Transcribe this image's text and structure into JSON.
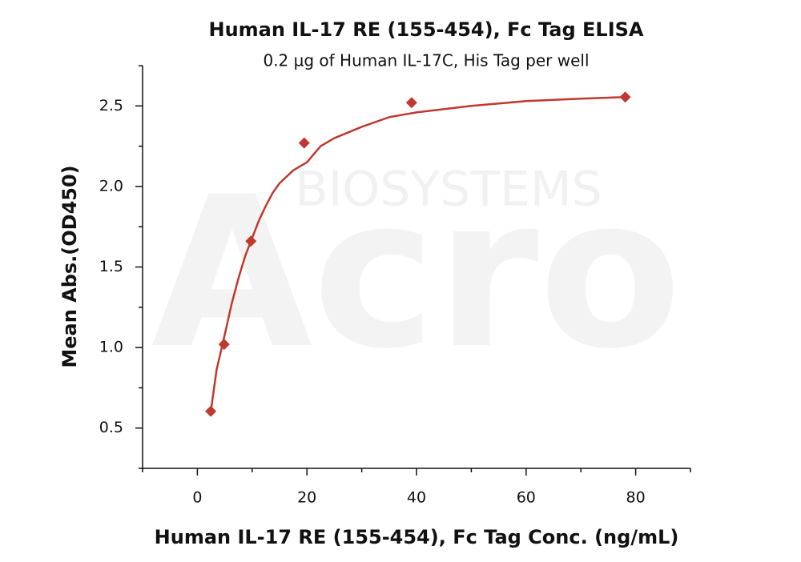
{
  "chart_data": {
    "type": "scatter",
    "title": "Human IL-17 RE (155-454), Fc Tag ELISA",
    "subtitle": "0.2 µg of Human IL-17C, His Tag per well",
    "x_label": "Human IL-17 RE (155-454), Fc Tag Conc. (ng/mL)",
    "y_label": "Mean Abs.(OD450)",
    "watermark": [
      "Acro",
      "BIOSYSTEMS"
    ],
    "points": {
      "color": "#c0392e",
      "x": [
        2.44,
        4.88,
        9.77,
        19.5,
        39.1,
        78.1
      ],
      "values": [
        0.604,
        1.02,
        1.66,
        2.27,
        2.52,
        2.555
      ]
    },
    "fit": {
      "color": "#c0392e",
      "x": [
        2.44,
        3.5,
        5,
        6.25,
        7.5,
        8.75,
        10,
        11.25,
        12.5,
        13.75,
        15,
        17.5,
        20,
        22.5,
        25,
        30,
        35,
        40,
        50,
        60,
        70,
        78.1
      ],
      "values": [
        0.6,
        0.86,
        1.08,
        1.27,
        1.43,
        1.57,
        1.68,
        1.79,
        1.88,
        1.96,
        2.02,
        2.1,
        2.15,
        2.25,
        2.3,
        2.37,
        2.43,
        2.46,
        2.5,
        2.53,
        2.545,
        2.555
      ]
    },
    "xlim": [
      -10,
      90
    ],
    "ylim": [
      0.25,
      2.75
    ],
    "xticks": [
      0,
      20,
      40,
      60,
      80
    ],
    "xminorticks": [
      -10,
      10,
      30,
      50,
      70,
      90
    ],
    "yticks": [
      0.5,
      {
        "value": 1,
        "label": "1.0"
      },
      1.5,
      {
        "value": 2,
        "label": "2.0"
      },
      2.5
    ],
    "yminorticks": [
      0.25,
      0.75,
      1.25,
      1.75,
      2.25,
      2.75
    ]
  }
}
